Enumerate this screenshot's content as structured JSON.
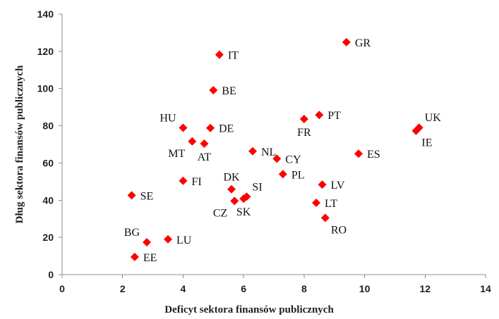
{
  "chart_data": {
    "type": "scatter",
    "xlabel": "Deficyt sektora finansów publicznych",
    "ylabel": "Dług sektora finansów publicznych",
    "xlim": [
      0,
      14
    ],
    "ylim": [
      0,
      140
    ],
    "x_ticks": [
      "0",
      "2",
      "4",
      "6",
      "8",
      "10",
      "12",
      "14"
    ],
    "y_ticks": [
      "0",
      "20",
      "40",
      "60",
      "80",
      "100",
      "120",
      "140"
    ],
    "grid": false,
    "marker_color": "#ff0000",
    "marker": "diamond",
    "points": [
      {
        "label": "GR",
        "x": 9.4,
        "y": 124.9,
        "label_side": "right"
      },
      {
        "label": "IT",
        "x": 5.2,
        "y": 118.2,
        "label_side": "right"
      },
      {
        "label": "BE",
        "x": 5.0,
        "y": 99.1,
        "label_side": "right"
      },
      {
        "label": "HU",
        "x": 4.0,
        "y": 78.9,
        "label_side": "above-left"
      },
      {
        "label": "DE",
        "x": 4.9,
        "y": 78.8,
        "label_side": "right"
      },
      {
        "label": "MT",
        "x": 4.3,
        "y": 71.6,
        "label_side": "below-left"
      },
      {
        "label": "AT",
        "x": 4.7,
        "y": 70.4,
        "label_side": "below"
      },
      {
        "label": "PT",
        "x": 8.5,
        "y": 85.8,
        "label_side": "right"
      },
      {
        "label": "FR",
        "x": 8.0,
        "y": 83.6,
        "label_side": "below"
      },
      {
        "label": "UK",
        "x": 11.8,
        "y": 79.0,
        "label_side": "above-right"
      },
      {
        "label": "IE",
        "x": 11.7,
        "y": 77.3,
        "label_side": "below-right"
      },
      {
        "label": "NL",
        "x": 6.3,
        "y": 66.3,
        "label_side": "right"
      },
      {
        "label": "CY",
        "x": 7.1,
        "y": 62.3,
        "label_side": "right"
      },
      {
        "label": "ES",
        "x": 9.8,
        "y": 65.0,
        "label_side": "right"
      },
      {
        "label": "PL",
        "x": 7.3,
        "y": 54.0,
        "label_side": "right"
      },
      {
        "label": "FI",
        "x": 4.0,
        "y": 50.4,
        "label_side": "right"
      },
      {
        "label": "DK",
        "x": 5.6,
        "y": 45.9,
        "label_side": "above"
      },
      {
        "label": "SI",
        "x": 6.1,
        "y": 41.9,
        "label_side": "above-right"
      },
      {
        "label": "SK",
        "x": 6.0,
        "y": 40.8,
        "label_side": "below"
      },
      {
        "label": "CZ",
        "x": 5.7,
        "y": 39.6,
        "label_side": "below-left"
      },
      {
        "label": "LV",
        "x": 8.6,
        "y": 48.4,
        "label_side": "right"
      },
      {
        "label": "LT",
        "x": 8.4,
        "y": 38.6,
        "label_side": "right"
      },
      {
        "label": "RO",
        "x": 8.7,
        "y": 30.5,
        "label_side": "below-right"
      },
      {
        "label": "SE",
        "x": 2.3,
        "y": 42.6,
        "label_side": "right"
      },
      {
        "label": "BG",
        "x": 2.8,
        "y": 17.4,
        "label_side": "above-left"
      },
      {
        "label": "LU",
        "x": 3.5,
        "y": 19.0,
        "label_side": "right"
      },
      {
        "label": "EE",
        "x": 2.4,
        "y": 9.5,
        "label_side": "right"
      }
    ]
  }
}
